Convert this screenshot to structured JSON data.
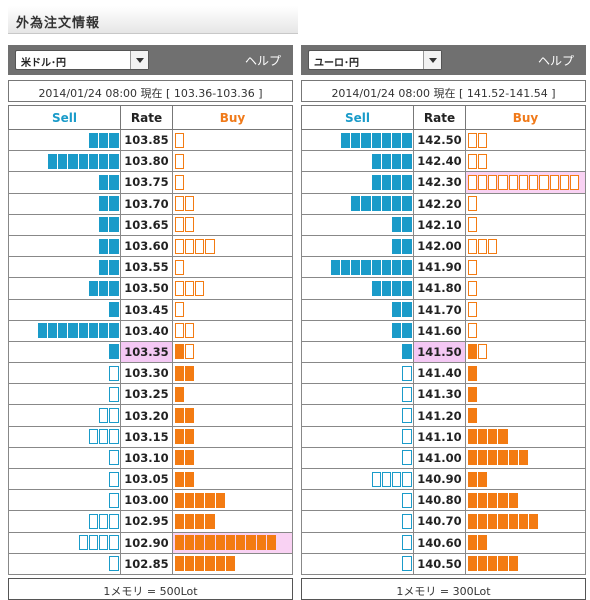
{
  "page": {
    "title": "外為注文情報"
  },
  "colors": {
    "sell": "#1a9bc9",
    "buy": "#f37b12",
    "current": "#f4c8f4"
  },
  "panels": [
    {
      "id": "usd-jpy",
      "pair_label": "米ドル･円",
      "help_label": "ヘルプ",
      "status": "2014/01/24  08:00 現在 [ 103.36-103.36 ]",
      "headers": {
        "sell": "Sell",
        "rate": "Rate",
        "buy": "Buy"
      },
      "current_rate": "103.35",
      "footer": "1メモリ = 500Lot",
      "rows": [
        {
          "rate": "103.85",
          "sell": 3,
          "sell_filled": true,
          "buy": 1,
          "buy_filled": false,
          "buy_highlight": false
        },
        {
          "rate": "103.80",
          "sell": 7,
          "sell_filled": true,
          "buy": 1,
          "buy_filled": false,
          "buy_highlight": false
        },
        {
          "rate": "103.75",
          "sell": 2,
          "sell_filled": true,
          "buy": 1,
          "buy_filled": false,
          "buy_highlight": false
        },
        {
          "rate": "103.70",
          "sell": 2,
          "sell_filled": true,
          "buy": 2,
          "buy_filled": false,
          "buy_highlight": false
        },
        {
          "rate": "103.65",
          "sell": 2,
          "sell_filled": true,
          "buy": 2,
          "buy_filled": false,
          "buy_highlight": false
        },
        {
          "rate": "103.60",
          "sell": 2,
          "sell_filled": true,
          "buy": 4,
          "buy_filled": false,
          "buy_highlight": false
        },
        {
          "rate": "103.55",
          "sell": 2,
          "sell_filled": true,
          "buy": 1,
          "buy_filled": false,
          "buy_highlight": false
        },
        {
          "rate": "103.50",
          "sell": 3,
          "sell_filled": true,
          "buy": 3,
          "buy_filled": false,
          "buy_highlight": false
        },
        {
          "rate": "103.45",
          "sell": 1,
          "sell_filled": true,
          "buy": 1,
          "buy_filled": false,
          "buy_highlight": false
        },
        {
          "rate": "103.40",
          "sell": 8,
          "sell_filled": true,
          "buy": 2,
          "buy_filled": false,
          "buy_highlight": false
        },
        {
          "rate": "103.35",
          "sell": 1,
          "sell_filled": true,
          "buy": 1,
          "buy_filled": true,
          "buy_extra_outline": 1,
          "buy_highlight": false
        },
        {
          "rate": "103.30",
          "sell": 1,
          "sell_filled": false,
          "buy": 2,
          "buy_filled": true,
          "buy_highlight": false
        },
        {
          "rate": "103.25",
          "sell": 1,
          "sell_filled": false,
          "buy": 1,
          "buy_filled": true,
          "buy_highlight": false
        },
        {
          "rate": "103.20",
          "sell": 2,
          "sell_filled": false,
          "buy": 2,
          "buy_filled": true,
          "buy_highlight": false
        },
        {
          "rate": "103.15",
          "sell": 3,
          "sell_filled": false,
          "buy": 2,
          "buy_filled": true,
          "buy_highlight": false
        },
        {
          "rate": "103.10",
          "sell": 1,
          "sell_filled": false,
          "buy": 2,
          "buy_filled": true,
          "buy_highlight": false
        },
        {
          "rate": "103.05",
          "sell": 1,
          "sell_filled": false,
          "buy": 2,
          "buy_filled": true,
          "buy_highlight": false
        },
        {
          "rate": "103.00",
          "sell": 1,
          "sell_filled": false,
          "buy": 5,
          "buy_filled": true,
          "buy_highlight": false
        },
        {
          "rate": "102.95",
          "sell": 3,
          "sell_filled": false,
          "buy": 4,
          "buy_filled": true,
          "buy_highlight": false
        },
        {
          "rate": "102.90",
          "sell": 4,
          "sell_filled": false,
          "buy": 10,
          "buy_filled": true,
          "buy_highlight": true
        },
        {
          "rate": "102.85",
          "sell": 1,
          "sell_filled": false,
          "buy": 6,
          "buy_filled": true,
          "buy_highlight": false
        }
      ]
    },
    {
      "id": "eur-jpy",
      "pair_label": "ユーロ･円",
      "help_label": "ヘルプ",
      "status": "2014/01/24  08:00 現在 [ 141.52-141.54 ]",
      "headers": {
        "sell": "Sell",
        "rate": "Rate",
        "buy": "Buy"
      },
      "current_rate": "141.50",
      "footer": "1メモリ = 300Lot",
      "rows": [
        {
          "rate": "142.50",
          "sell": 7,
          "sell_filled": true,
          "buy": 2,
          "buy_filled": false,
          "buy_highlight": false
        },
        {
          "rate": "142.40",
          "sell": 4,
          "sell_filled": true,
          "buy": 2,
          "buy_filled": false,
          "buy_highlight": false
        },
        {
          "rate": "142.30",
          "sell": 4,
          "sell_filled": true,
          "buy": 11,
          "buy_filled": false,
          "buy_highlight": true
        },
        {
          "rate": "142.20",
          "sell": 6,
          "sell_filled": true,
          "buy": 1,
          "buy_filled": false,
          "buy_highlight": false
        },
        {
          "rate": "142.10",
          "sell": 2,
          "sell_filled": true,
          "buy": 1,
          "buy_filled": false,
          "buy_highlight": false
        },
        {
          "rate": "142.00",
          "sell": 2,
          "sell_filled": true,
          "buy": 3,
          "buy_filled": false,
          "buy_highlight": false
        },
        {
          "rate": "141.90",
          "sell": 8,
          "sell_filled": true,
          "buy": 1,
          "buy_filled": false,
          "buy_highlight": false
        },
        {
          "rate": "141.80",
          "sell": 4,
          "sell_filled": true,
          "buy": 1,
          "buy_filled": false,
          "buy_highlight": false
        },
        {
          "rate": "141.70",
          "sell": 2,
          "sell_filled": true,
          "buy": 1,
          "buy_filled": false,
          "buy_highlight": false
        },
        {
          "rate": "141.60",
          "sell": 2,
          "sell_filled": true,
          "buy": 1,
          "buy_filled": false,
          "buy_highlight": false
        },
        {
          "rate": "141.50",
          "sell": 1,
          "sell_filled": true,
          "buy": 1,
          "buy_filled": true,
          "buy_extra_outline": 1,
          "buy_highlight": false
        },
        {
          "rate": "141.40",
          "sell": 1,
          "sell_filled": false,
          "buy": 1,
          "buy_filled": true,
          "buy_highlight": false
        },
        {
          "rate": "141.30",
          "sell": 1,
          "sell_filled": false,
          "buy": 1,
          "buy_filled": true,
          "buy_highlight": false
        },
        {
          "rate": "141.20",
          "sell": 1,
          "sell_filled": false,
          "buy": 1,
          "buy_filled": true,
          "buy_highlight": false
        },
        {
          "rate": "141.10",
          "sell": 1,
          "sell_filled": false,
          "buy": 4,
          "buy_filled": true,
          "buy_highlight": false
        },
        {
          "rate": "141.00",
          "sell": 1,
          "sell_filled": false,
          "buy": 6,
          "buy_filled": true,
          "buy_highlight": false
        },
        {
          "rate": "140.90",
          "sell": 4,
          "sell_filled": false,
          "buy": 2,
          "buy_filled": true,
          "buy_highlight": false
        },
        {
          "rate": "140.80",
          "sell": 1,
          "sell_filled": false,
          "buy": 5,
          "buy_filled": true,
          "buy_highlight": false
        },
        {
          "rate": "140.70",
          "sell": 1,
          "sell_filled": false,
          "buy": 7,
          "buy_filled": true,
          "buy_highlight": false
        },
        {
          "rate": "140.60",
          "sell": 1,
          "sell_filled": false,
          "buy": 2,
          "buy_filled": true,
          "buy_highlight": false
        },
        {
          "rate": "140.50",
          "sell": 1,
          "sell_filled": false,
          "buy": 5,
          "buy_filled": true,
          "buy_highlight": false
        }
      ]
    }
  ]
}
